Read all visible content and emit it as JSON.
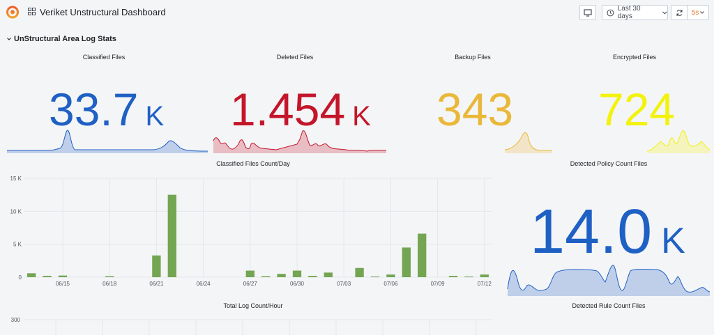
{
  "header": {
    "title": "Veriket Unstructural Dashboard",
    "time_range": "Last 30 days",
    "refresh_interval": "5s"
  },
  "row": {
    "title": "UnStructural Area Log Stats"
  },
  "colors": {
    "blue": "#1f60c4",
    "red": "#c4162a",
    "orange": "#e0b400",
    "yellow": "#f2f20d",
    "green": "#73a553",
    "accent": "#e0752d"
  },
  "stats": [
    {
      "title": "Classified Files",
      "value": "33.7",
      "unit": "K",
      "color": "#1f60c4"
    },
    {
      "title": "Deleted Files",
      "value": "1.454",
      "unit": "K",
      "color": "#c4162a"
    },
    {
      "title": "Backup Files",
      "value": "343",
      "unit": "",
      "color": "#eab839"
    },
    {
      "title": "Encrypted Files",
      "value": "724",
      "unit": "",
      "color": "#f2f20d"
    }
  ],
  "policy_stat": {
    "title": "Detected Policy Count Files",
    "value": "14.0",
    "unit": "K",
    "color": "#1f60c4"
  },
  "rule_stat": {
    "title": "Detected Rule Count Files"
  },
  "chart_data": [
    {
      "type": "bar",
      "title": "Classified Files Count/Day",
      "x": [
        "06/13",
        "06/14",
        "06/15",
        "06/16",
        "06/17",
        "06/18",
        "06/19",
        "06/20",
        "06/21",
        "06/22",
        "06/23",
        "06/24",
        "06/25",
        "06/26",
        "06/27",
        "06/28",
        "06/29",
        "06/30",
        "07/01",
        "07/02",
        "07/03",
        "07/04",
        "07/05",
        "07/06",
        "07/07",
        "07/08",
        "07/09",
        "07/10",
        "07/11",
        "07/12"
      ],
      "values": [
        600,
        200,
        250,
        0,
        0,
        150,
        0,
        0,
        3300,
        12500,
        0,
        0,
        0,
        0,
        1000,
        150,
        500,
        1000,
        200,
        700,
        0,
        1400,
        100,
        400,
        4500,
        6600,
        0,
        200,
        100,
        400
      ],
      "tick_labels": [
        "06/15",
        "06/18",
        "06/21",
        "06/24",
        "06/27",
        "06/30",
        "07/03",
        "07/06",
        "07/09",
        "07/12"
      ],
      "y_ticks": [
        "0",
        "5 K",
        "10 K",
        "15 K"
      ],
      "ylim": [
        0,
        15000
      ],
      "grid": true,
      "color": "#73a553"
    },
    {
      "type": "line",
      "title": "Total Log Count/Hour",
      "y_ticks": [
        "300"
      ],
      "grid": true
    }
  ]
}
